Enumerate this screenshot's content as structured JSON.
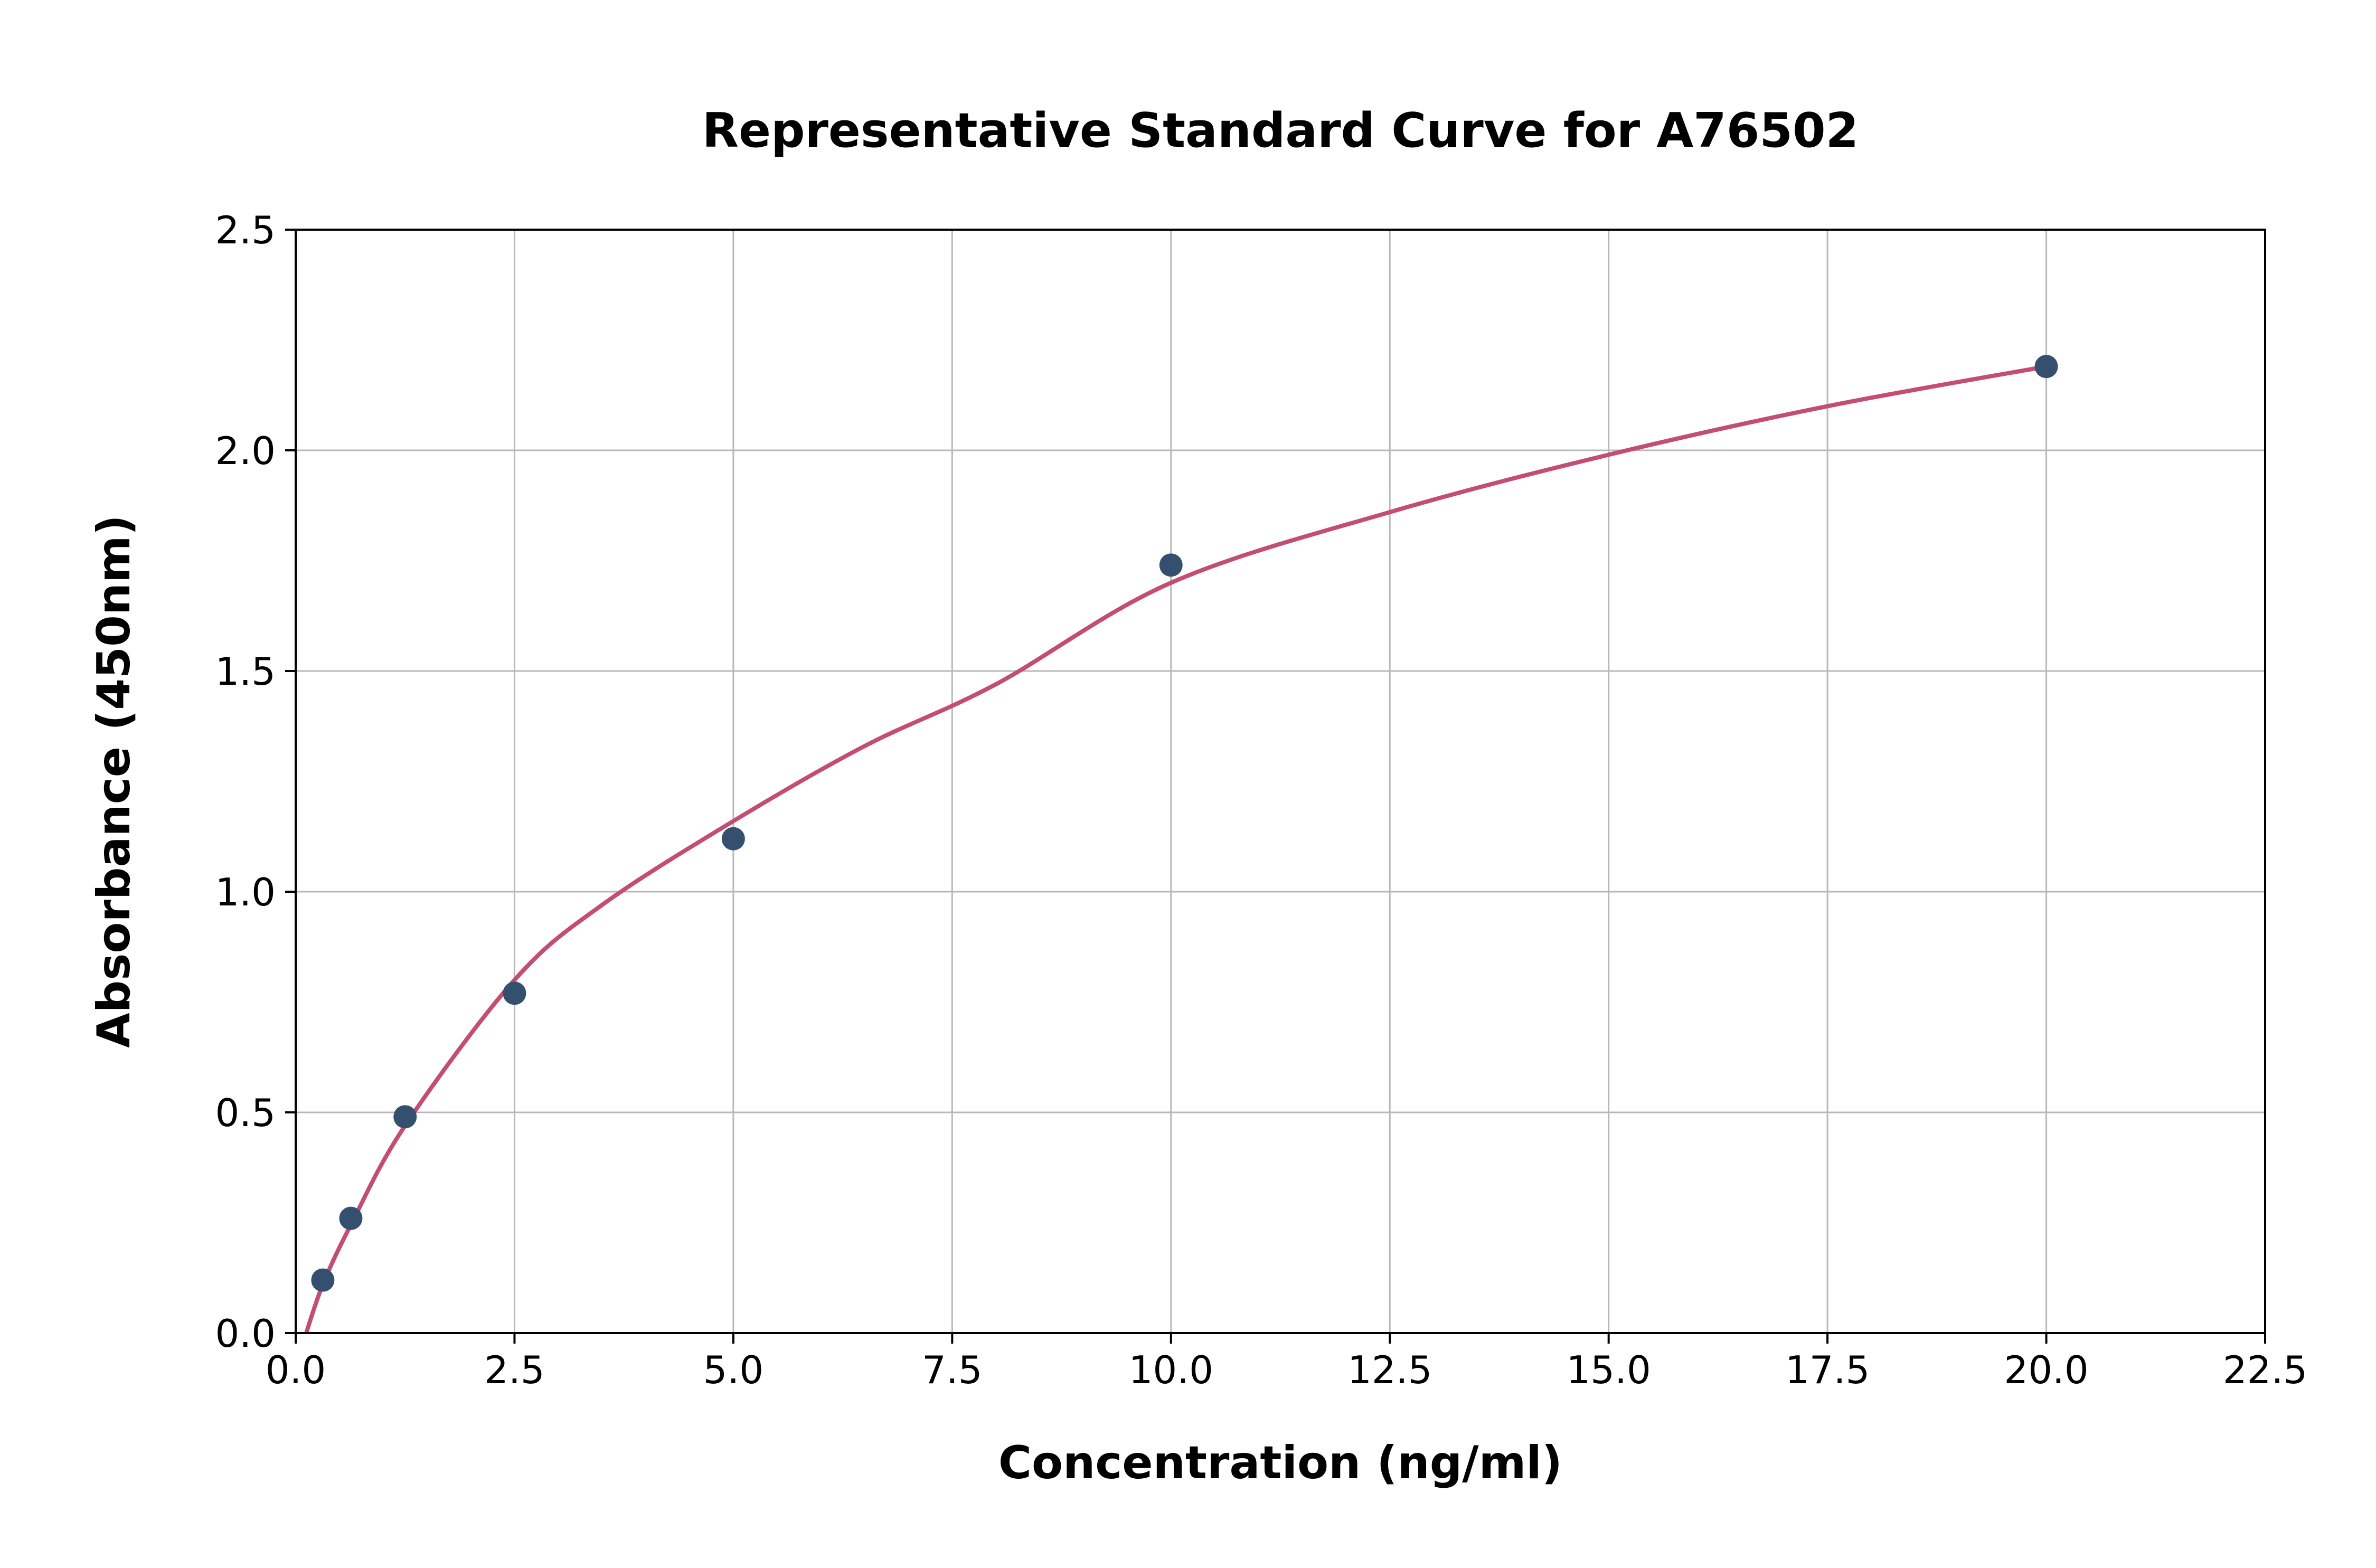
{
  "page": {
    "background_color": "#ffffff"
  },
  "chart_data": {
    "type": "scatter",
    "title": "Representative Standard Curve for A76502",
    "xlabel": "Concentration (ng/ml)",
    "ylabel": "Absorbance (450nm)",
    "xlim": [
      0,
      22.5
    ],
    "ylim": [
      0,
      2.5
    ],
    "x_ticks": [
      0.0,
      2.5,
      5.0,
      7.5,
      10.0,
      12.5,
      15.0,
      17.5,
      20.0,
      22.5
    ],
    "x_tick_labels": [
      "0.0",
      "2.5",
      "5.0",
      "7.5",
      "10.0",
      "12.5",
      "15.0",
      "17.5",
      "20.0",
      "22.5"
    ],
    "y_ticks": [
      0.0,
      0.5,
      1.0,
      1.5,
      2.0,
      2.5
    ],
    "y_tick_labels": [
      "0.0",
      "0.5",
      "1.0",
      "1.5",
      "2.0",
      "2.5"
    ],
    "grid": true,
    "legend_position": "none",
    "series": [
      {
        "name": "standard-points",
        "type": "scatter",
        "color": "#34506e",
        "points": [
          {
            "x": 0.31,
            "y": 0.12
          },
          {
            "x": 0.63,
            "y": 0.26
          },
          {
            "x": 1.25,
            "y": 0.49
          },
          {
            "x": 2.5,
            "y": 0.77
          },
          {
            "x": 5.0,
            "y": 1.12
          },
          {
            "x": 10.0,
            "y": 1.74
          },
          {
            "x": 20.0,
            "y": 2.19
          }
        ]
      },
      {
        "name": "fitted-curve",
        "type": "line",
        "color": "#c44d72",
        "points": [
          {
            "x": 0.12,
            "y": 0.0
          },
          {
            "x": 0.31,
            "y": 0.11
          },
          {
            "x": 0.63,
            "y": 0.245
          },
          {
            "x": 1.25,
            "y": 0.47
          },
          {
            "x": 2.5,
            "y": 0.8
          },
          {
            "x": 3.5,
            "y": 0.97
          },
          {
            "x": 5.0,
            "y": 1.16
          },
          {
            "x": 6.5,
            "y": 1.33
          },
          {
            "x": 8.0,
            "y": 1.47
          },
          {
            "x": 10.0,
            "y": 1.7
          },
          {
            "x": 12.5,
            "y": 1.86
          },
          {
            "x": 15.0,
            "y": 1.99
          },
          {
            "x": 17.5,
            "y": 2.1
          },
          {
            "x": 20.0,
            "y": 2.19
          }
        ]
      }
    ],
    "style": {
      "grid_color": "#b8b8b8",
      "spine_color": "#000000",
      "tick_color": "#000000",
      "point_radius": 22,
      "curve_width": 8
    }
  }
}
